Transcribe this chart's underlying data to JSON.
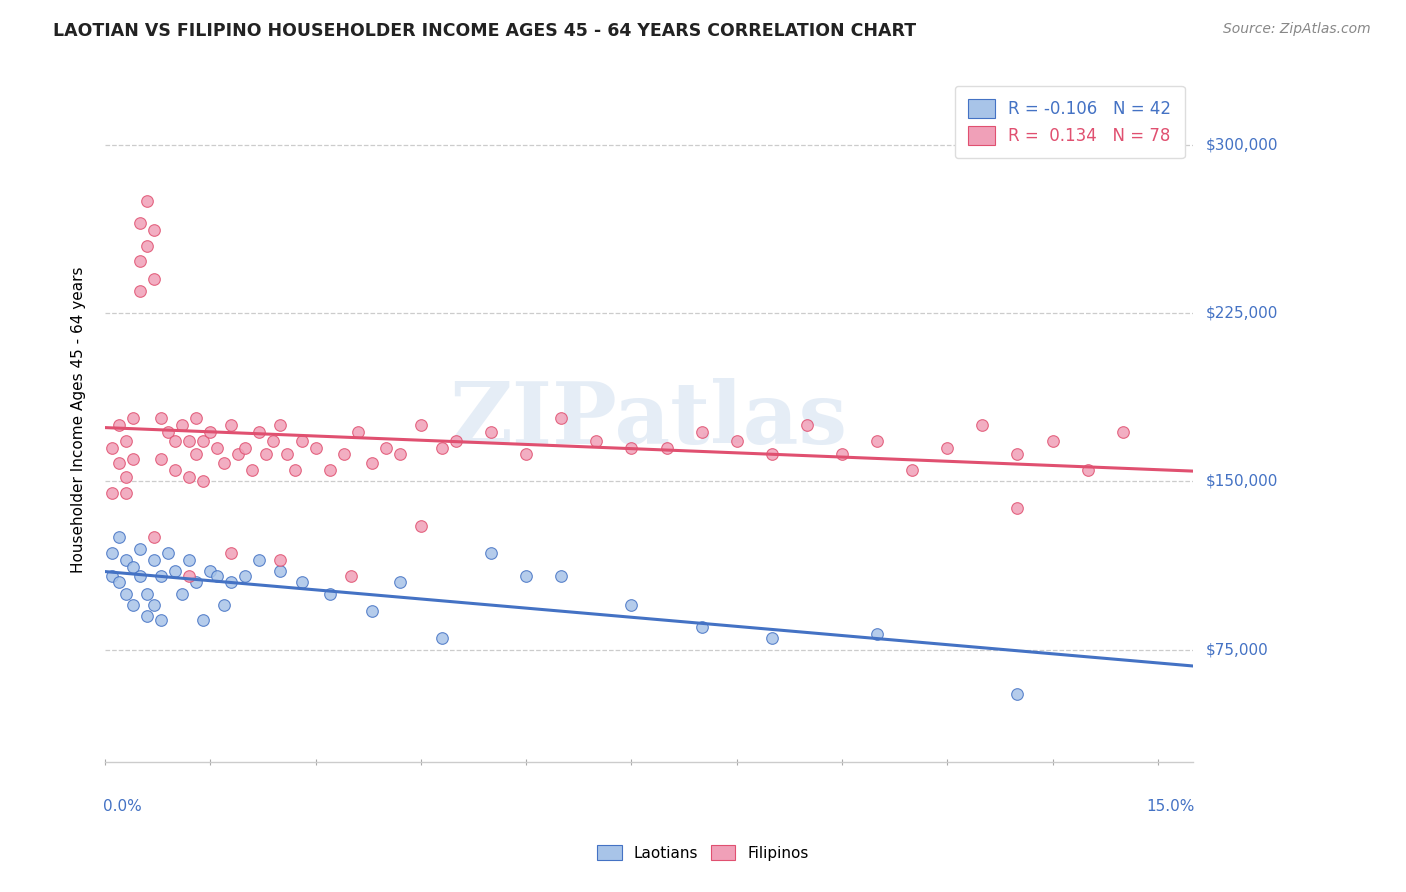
{
  "title": "LAOTIAN VS FILIPINO HOUSEHOLDER INCOME AGES 45 - 64 YEARS CORRELATION CHART",
  "source": "Source: ZipAtlas.com",
  "ylabel": "Householder Income Ages 45 - 64 years",
  "ytick_values": [
    75000,
    150000,
    225000,
    300000
  ],
  "ytick_labels": [
    "$75,000",
    "$150,000",
    "$225,000",
    "$300,000"
  ],
  "ylim": [
    25000,
    330000
  ],
  "xlim_min": 0.0,
  "xlim_max": 0.155,
  "legend_blue_r": "-0.106",
  "legend_blue_n": "42",
  "legend_pink_r": "0.134",
  "legend_pink_n": "78",
  "blue_scatter_color": "#a8c4e8",
  "pink_scatter_color": "#f0a0b8",
  "blue_line_color": "#4472c4",
  "pink_line_color": "#e05070",
  "axis_label_color": "#4472c4",
  "title_color": "#222222",
  "source_color": "#888888",
  "laotians_x": [
    0.001,
    0.001,
    0.002,
    0.002,
    0.003,
    0.003,
    0.004,
    0.004,
    0.005,
    0.005,
    0.006,
    0.006,
    0.007,
    0.007,
    0.008,
    0.008,
    0.009,
    0.01,
    0.011,
    0.012,
    0.013,
    0.014,
    0.015,
    0.016,
    0.017,
    0.018,
    0.02,
    0.022,
    0.025,
    0.028,
    0.032,
    0.038,
    0.042,
    0.048,
    0.055,
    0.06,
    0.065,
    0.075,
    0.085,
    0.095,
    0.11,
    0.13
  ],
  "laotians_y": [
    118000,
    108000,
    125000,
    105000,
    115000,
    100000,
    112000,
    95000,
    120000,
    108000,
    100000,
    90000,
    115000,
    95000,
    108000,
    88000,
    118000,
    110000,
    100000,
    115000,
    105000,
    88000,
    110000,
    108000,
    95000,
    105000,
    108000,
    115000,
    110000,
    105000,
    100000,
    92000,
    105000,
    80000,
    118000,
    108000,
    108000,
    95000,
    85000,
    80000,
    82000,
    55000
  ],
  "filipinos_x": [
    0.001,
    0.001,
    0.002,
    0.002,
    0.003,
    0.003,
    0.004,
    0.004,
    0.005,
    0.005,
    0.005,
    0.006,
    0.006,
    0.007,
    0.007,
    0.008,
    0.008,
    0.009,
    0.01,
    0.01,
    0.011,
    0.012,
    0.012,
    0.013,
    0.013,
    0.014,
    0.014,
    0.015,
    0.016,
    0.017,
    0.018,
    0.019,
    0.02,
    0.021,
    0.022,
    0.023,
    0.024,
    0.025,
    0.026,
    0.027,
    0.028,
    0.03,
    0.032,
    0.034,
    0.036,
    0.038,
    0.04,
    0.042,
    0.045,
    0.048,
    0.05,
    0.055,
    0.06,
    0.065,
    0.07,
    0.075,
    0.08,
    0.085,
    0.09,
    0.095,
    0.1,
    0.105,
    0.11,
    0.115,
    0.12,
    0.125,
    0.13,
    0.135,
    0.14,
    0.145,
    0.003,
    0.007,
    0.012,
    0.018,
    0.025,
    0.035,
    0.045,
    0.13
  ],
  "filipinos_y": [
    165000,
    145000,
    175000,
    158000,
    168000,
    152000,
    178000,
    160000,
    265000,
    248000,
    235000,
    275000,
    255000,
    262000,
    240000,
    178000,
    160000,
    172000,
    168000,
    155000,
    175000,
    168000,
    152000,
    178000,
    162000,
    168000,
    150000,
    172000,
    165000,
    158000,
    175000,
    162000,
    165000,
    155000,
    172000,
    162000,
    168000,
    175000,
    162000,
    155000,
    168000,
    165000,
    155000,
    162000,
    172000,
    158000,
    165000,
    162000,
    175000,
    165000,
    168000,
    172000,
    162000,
    178000,
    168000,
    165000,
    165000,
    172000,
    168000,
    162000,
    175000,
    162000,
    168000,
    155000,
    165000,
    175000,
    162000,
    168000,
    155000,
    172000,
    145000,
    125000,
    108000,
    118000,
    115000,
    108000,
    130000,
    138000
  ]
}
